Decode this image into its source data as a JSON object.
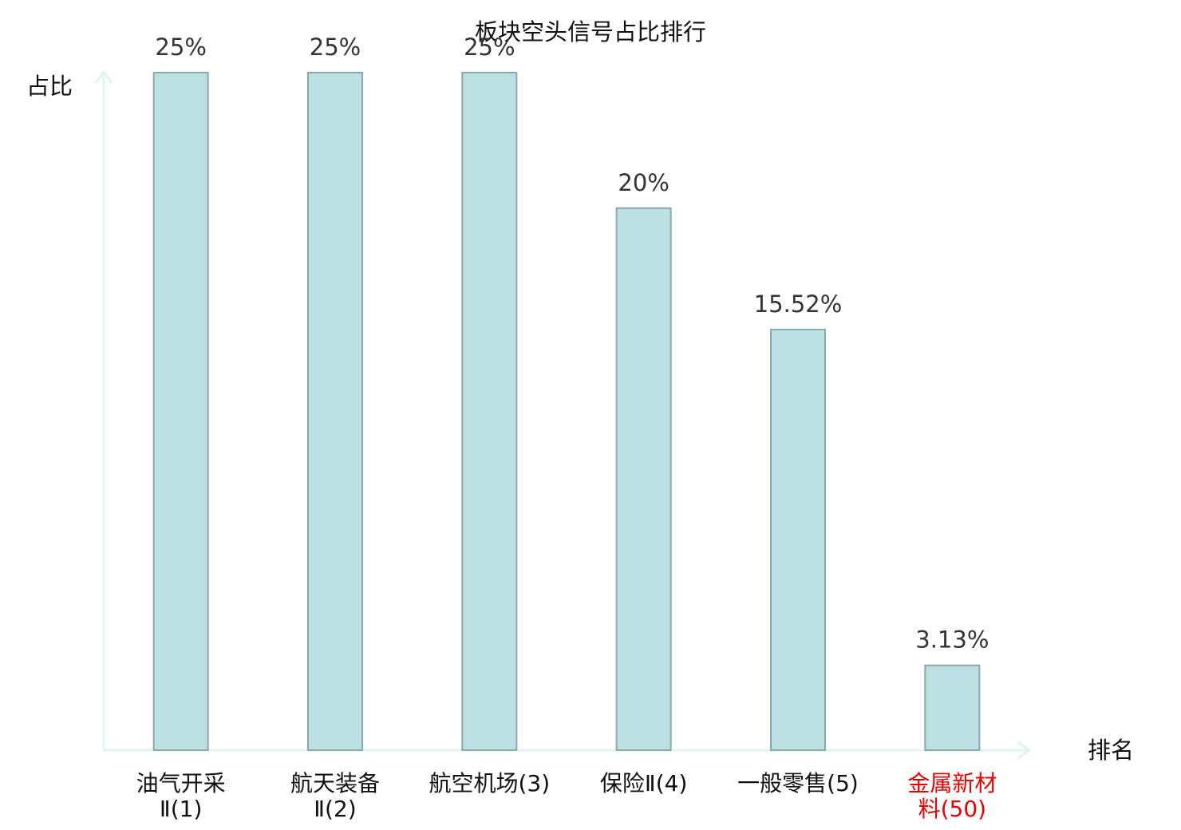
{
  "chart_data": {
    "type": "bar",
    "title": "板块空头信号占比排行",
    "y_label": "占比",
    "x_label": "排名",
    "categories": [
      "油气开采\nⅡ(1)",
      "航天装备\nⅡ(2)",
      "航空机场(3)",
      "保险Ⅱ(4)",
      "一般零售(5)",
      "金属新材\n料(50)"
    ],
    "label_colors": [
      "#111111",
      "#111111",
      "#111111",
      "#111111",
      "#111111",
      "#e00000"
    ],
    "values": [
      25,
      25,
      25,
      20,
      15.52,
      3.13
    ],
    "value_labels": [
      "25%",
      "25%",
      "25%",
      "20%",
      "15.52%",
      "3.13%"
    ],
    "color": "#bde0e3",
    "edge_color": "#8aa8ab",
    "ylim": [
      0,
      25
    ]
  }
}
